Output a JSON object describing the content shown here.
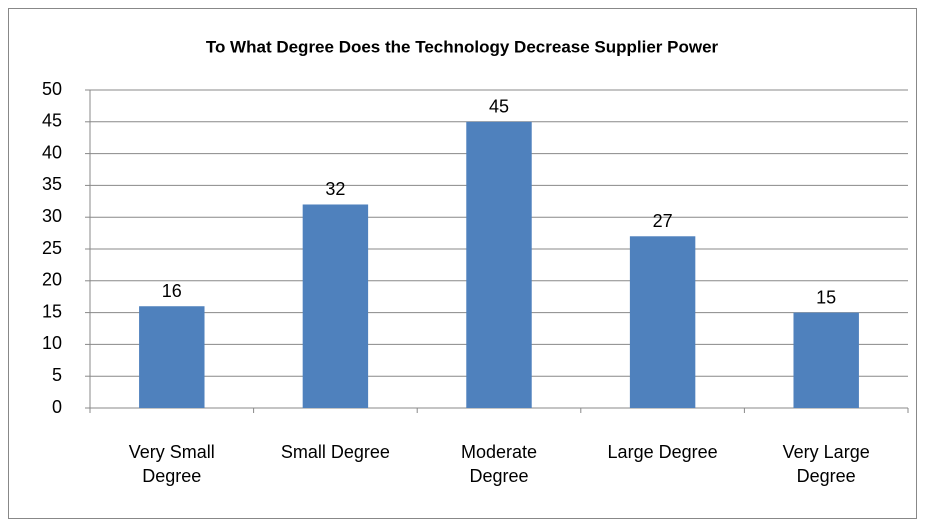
{
  "chart_data": {
    "type": "bar",
    "title": "To What Degree Does the Technology Decrease Supplier Power",
    "categories": [
      "Very Small Degree",
      "Small Degree",
      "Moderate Degree",
      "Large Degree",
      "Very Large Degree"
    ],
    "values": [
      16,
      32,
      45,
      27,
      15
    ],
    "color": "#4f81bd",
    "ylim": [
      0,
      50
    ],
    "yticks": [
      0,
      5,
      10,
      15,
      20,
      25,
      30,
      35,
      40,
      45,
      50
    ],
    "grid": true
  }
}
